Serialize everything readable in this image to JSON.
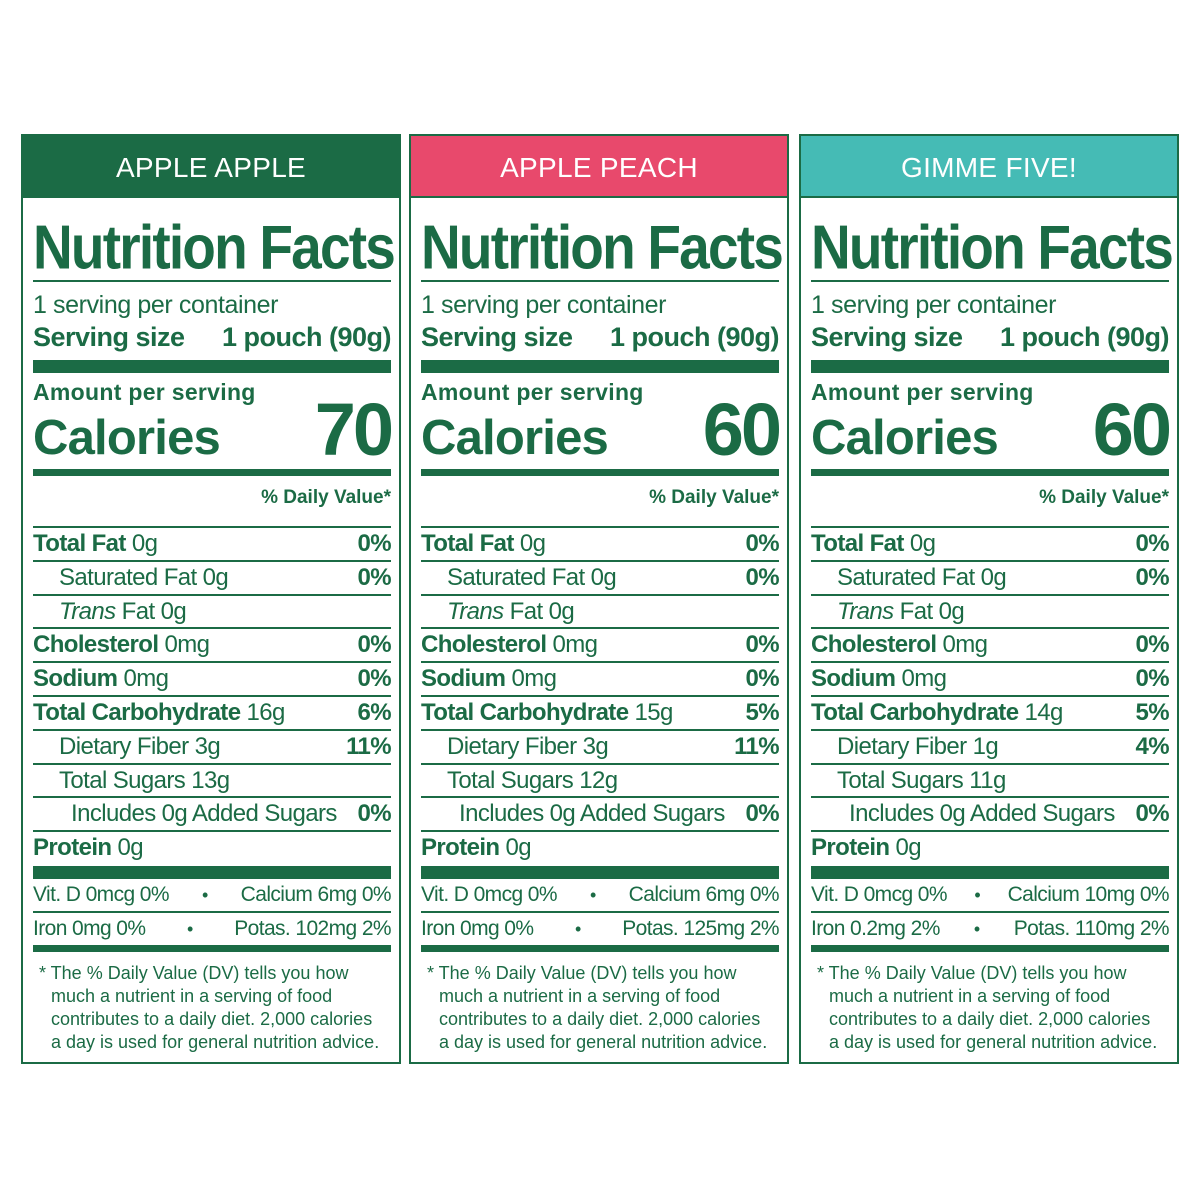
{
  "panels": [
    {
      "flavor": "APPLE APPLE",
      "header_color": "#1b6b45",
      "title": "Nutrition Facts",
      "servings_per_container": "1 serving per container",
      "serving_size_label": "Serving size",
      "serving_size_value": "1 pouch (90g)",
      "amount_per_serving": "Amount per serving",
      "calories_label": "Calories",
      "calories_value": "70",
      "daily_value_header": "% Daily Value*",
      "rows": [
        {
          "bold_label": "Total Fat",
          "label": " 0g",
          "pct": "0%"
        },
        {
          "bold_label": "",
          "label": "Saturated Fat 0g",
          "pct": "0%"
        },
        {
          "italic_label": "Trans",
          "label": " Fat 0g",
          "pct": ""
        },
        {
          "bold_label": "Cholesterol",
          "label": " 0mg",
          "pct": "0%"
        },
        {
          "bold_label": "Sodium",
          "label": " 0mg",
          "pct": "0%"
        },
        {
          "bold_label": "Total Carbohydrate",
          "label": " 16g",
          "pct": "6%"
        },
        {
          "bold_label": "",
          "label": "Dietary Fiber 3g",
          "pct": "11%"
        },
        {
          "bold_label": "",
          "label": "Total Sugars 13g",
          "pct": ""
        },
        {
          "bold_label": "",
          "label": "Includes 0g Added Sugars",
          "pct": "0%"
        },
        {
          "bold_label": "Protein",
          "label": " 0g",
          "pct": ""
        }
      ],
      "vitamins": {
        "row1_left": "Vit. D 0mcg 0%",
        "row1_right": "Calcium 6mg 0%",
        "row2_left": "Iron 0mg 0%",
        "row2_right": "Potas. 102mg 2%",
        "bullet": "•"
      },
      "footnote": [
        "* The % Daily Value (DV) tells you how",
        "much a nutrient in a serving of food",
        "contributes to a daily diet. 2,000 calories",
        "a day is used for general nutrition advice."
      ]
    },
    {
      "flavor": "APPLE PEACH",
      "header_color": "#e8496c",
      "title": "Nutrition Facts",
      "servings_per_container": "1 serving per container",
      "serving_size_label": "Serving size",
      "serving_size_value": "1 pouch (90g)",
      "amount_per_serving": "Amount per serving",
      "calories_label": "Calories",
      "calories_value": "60",
      "daily_value_header": "% Daily Value*",
      "rows": [
        {
          "bold_label": "Total Fat",
          "label": " 0g",
          "pct": "0%"
        },
        {
          "bold_label": "",
          "label": "Saturated Fat 0g",
          "pct": "0%"
        },
        {
          "italic_label": "Trans",
          "label": " Fat 0g",
          "pct": ""
        },
        {
          "bold_label": "Cholesterol",
          "label": " 0mg",
          "pct": "0%"
        },
        {
          "bold_label": "Sodium",
          "label": " 0mg",
          "pct": "0%"
        },
        {
          "bold_label": "Total Carbohydrate",
          "label": " 15g",
          "pct": "5%"
        },
        {
          "bold_label": "",
          "label": "Dietary Fiber 3g",
          "pct": "11%"
        },
        {
          "bold_label": "",
          "label": "Total Sugars 12g",
          "pct": ""
        },
        {
          "bold_label": "",
          "label": "Includes 0g Added Sugars",
          "pct": "0%"
        },
        {
          "bold_label": "Protein",
          "label": " 0g",
          "pct": ""
        }
      ],
      "vitamins": {
        "row1_left": "Vit. D 0mcg 0%",
        "row1_right": "Calcium 6mg 0%",
        "row2_left": "Iron 0mg 0%",
        "row2_right": "Potas. 125mg 2%",
        "bullet": "•"
      },
      "footnote": [
        "* The % Daily Value (DV) tells you how",
        "much a nutrient in a serving of food",
        "contributes to a daily diet. 2,000 calories",
        "a day is used for general nutrition advice."
      ]
    },
    {
      "flavor": "GIMME FIVE!",
      "header_color": "#45bbb5",
      "title": "Nutrition Facts",
      "servings_per_container": "1 serving per container",
      "serving_size_label": "Serving size",
      "serving_size_value": "1 pouch (90g)",
      "amount_per_serving": "Amount per serving",
      "calories_label": "Calories",
      "calories_value": "60",
      "daily_value_header": "% Daily Value*",
      "rows": [
        {
          "bold_label": "Total Fat",
          "label": " 0g",
          "pct": "0%"
        },
        {
          "bold_label": "",
          "label": "Saturated Fat 0g",
          "pct": "0%"
        },
        {
          "italic_label": "Trans",
          "label": " Fat 0g",
          "pct": ""
        },
        {
          "bold_label": "Cholesterol",
          "label": " 0mg",
          "pct": "0%"
        },
        {
          "bold_label": "Sodium",
          "label": " 0mg",
          "pct": "0%"
        },
        {
          "bold_label": "Total Carbohydrate",
          "label": " 14g",
          "pct": "5%"
        },
        {
          "bold_label": "",
          "label": "Dietary Fiber 1g",
          "pct": "4%"
        },
        {
          "bold_label": "",
          "label": "Total Sugars 11g",
          "pct": ""
        },
        {
          "bold_label": "",
          "label": "Includes 0g Added Sugars",
          "pct": "0%"
        },
        {
          "bold_label": "Protein",
          "label": " 0g",
          "pct": ""
        }
      ],
      "vitamins": {
        "row1_left": "Vit. D 0mcg 0%",
        "row1_right": "Calcium 10mg 0%",
        "row2_left": "Iron 0.2mg 2%",
        "row2_right": "Potas. 110mg 2%",
        "bullet": "•"
      },
      "footnote": [
        "* The % Daily Value (DV) tells you how",
        "much a nutrient in a serving of food",
        "contributes to a daily diet. 2,000 calories",
        "a day is used for general nutrition advice."
      ]
    }
  ]
}
